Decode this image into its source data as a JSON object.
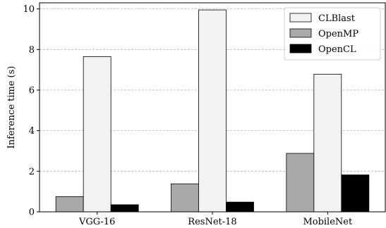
{
  "chart_data": {
    "type": "bar",
    "categories": [
      "VGG-16",
      "ResNet-18",
      "MobileNet"
    ],
    "series": [
      {
        "name": "OpenMP",
        "values": [
          0.75,
          1.38,
          2.88
        ],
        "color": "#a9a9a9"
      },
      {
        "name": "CLBlast",
        "values": [
          7.65,
          9.95,
          6.78
        ],
        "color": "#f2f2f2"
      },
      {
        "name": "OpenCL",
        "values": [
          0.35,
          0.48,
          1.82
        ],
        "color": "#000000"
      }
    ],
    "legend_order": [
      "CLBlast",
      "OpenMP",
      "OpenCL"
    ],
    "title": "",
    "xlabel": "",
    "ylabel": "Inference time (s)",
    "ylim": [
      0,
      10.3
    ],
    "yticks": [
      0,
      2,
      4,
      6,
      8,
      10
    ],
    "grid": "y-dashed",
    "legend_position": "top-right"
  }
}
